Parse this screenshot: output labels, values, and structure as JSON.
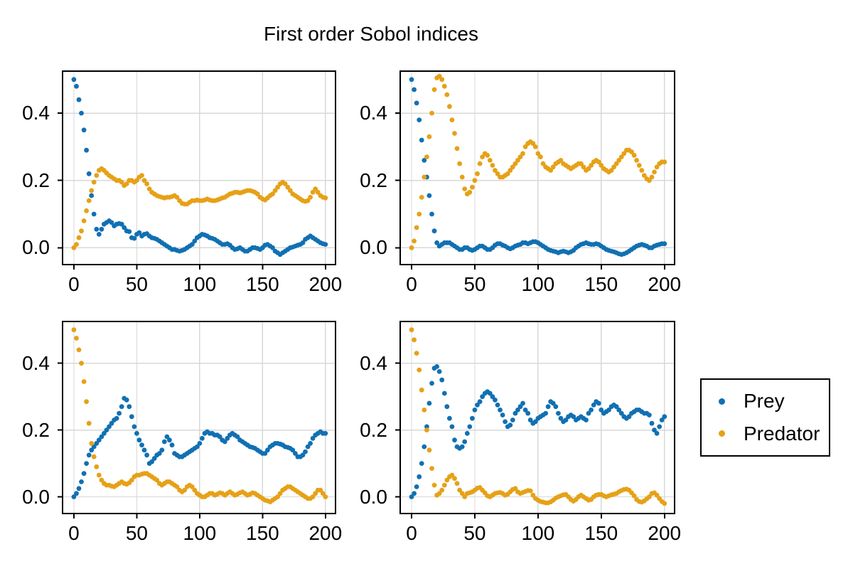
{
  "colors": {
    "prey": "#1170b2",
    "predator": "#e6a117",
    "grid": "#d8d8d8",
    "axis": "#000000",
    "text": "#000000",
    "background": "#ffffff"
  },
  "legend": {
    "position": "center-right",
    "items": [
      {
        "label": "Prey",
        "color_key": "prey"
      },
      {
        "label": "Predator",
        "color_key": "predator"
      }
    ]
  },
  "chart_data": {
    "type": "scatter",
    "title": "First order Sobol indices",
    "xlabel": "",
    "ylabel": "",
    "grid": true,
    "marker": "point",
    "xlim": [
      -9,
      208
    ],
    "ylim": [
      -0.05,
      0.525
    ],
    "x_ticks": [
      0,
      50,
      100,
      150,
      200
    ],
    "x_tick_labels": [
      "0",
      "50",
      "100",
      "150",
      "200"
    ],
    "y_ticks": [
      0.0,
      0.2,
      0.4
    ],
    "y_tick_labels": [
      "0.0",
      "0.2",
      "0.4"
    ],
    "x": [
      0,
      2,
      4,
      6,
      8,
      10,
      12,
      14,
      16,
      18,
      20,
      22,
      24,
      26,
      28,
      30,
      32,
      34,
      36,
      38,
      40,
      42,
      44,
      46,
      48,
      50,
      52,
      54,
      56,
      58,
      60,
      62,
      64,
      66,
      68,
      70,
      72,
      74,
      76,
      78,
      80,
      82,
      84,
      86,
      88,
      90,
      92,
      94,
      96,
      98,
      100,
      102,
      104,
      106,
      108,
      110,
      112,
      114,
      116,
      118,
      120,
      122,
      124,
      126,
      128,
      130,
      132,
      134,
      136,
      138,
      140,
      142,
      144,
      146,
      148,
      150,
      152,
      154,
      156,
      158,
      160,
      162,
      164,
      166,
      168,
      170,
      172,
      174,
      176,
      178,
      180,
      182,
      184,
      186,
      188,
      190,
      192,
      194,
      196,
      198,
      200
    ],
    "subplots": [
      {
        "position": "top-left",
        "series": [
          {
            "name": "Prey",
            "color_key": "prey",
            "values": [
              0.5,
              0.48,
              0.44,
              0.4,
              0.35,
              0.29,
              0.22,
              0.155,
              0.1,
              0.055,
              0.04,
              0.055,
              0.07,
              0.075,
              0.08,
              0.075,
              0.065,
              0.07,
              0.072,
              0.07,
              0.06,
              0.05,
              0.048,
              0.03,
              0.028,
              0.04,
              0.045,
              0.035,
              0.04,
              0.042,
              0.035,
              0.03,
              0.028,
              0.025,
              0.02,
              0.015,
              0.01,
              0.005,
              0,
              -0.005,
              -0.005,
              -0.008,
              -0.01,
              -0.008,
              -0.005,
              0,
              0.005,
              0.01,
              0.02,
              0.03,
              0.035,
              0.04,
              0.038,
              0.035,
              0.03,
              0.028,
              0.025,
              0.02,
              0.015,
              0.01,
              0.01,
              0.012,
              0.008,
              0,
              -0.005,
              -0.003,
              0,
              -0.005,
              -0.01,
              -0.01,
              -0.005,
              0,
              0,
              -0.002,
              -0.005,
              0,
              0.008,
              0.01,
              0.005,
              0,
              -0.01,
              -0.015,
              -0.02,
              -0.015,
              -0.01,
              -0.005,
              0,
              0.002,
              0.005,
              0.008,
              0.01,
              0.015,
              0.025,
              0.03,
              0.035,
              0.03,
              0.025,
              0.02,
              0.015,
              0.012,
              0.01
            ]
          },
          {
            "name": "Predator",
            "color_key": "predator",
            "values": [
              0,
              0.01,
              0.03,
              0.05,
              0.08,
              0.11,
              0.14,
              0.17,
              0.195,
              0.215,
              0.23,
              0.235,
              0.23,
              0.222,
              0.215,
              0.21,
              0.205,
              0.2,
              0.2,
              0.195,
              0.185,
              0.19,
              0.2,
              0.2,
              0.195,
              0.2,
              0.21,
              0.215,
              0.2,
              0.19,
              0.175,
              0.165,
              0.16,
              0.155,
              0.152,
              0.15,
              0.148,
              0.15,
              0.15,
              0.152,
              0.155,
              0.15,
              0.14,
              0.132,
              0.13,
              0.13,
              0.135,
              0.14,
              0.14,
              0.142,
              0.14,
              0.14,
              0.142,
              0.145,
              0.142,
              0.14,
              0.14,
              0.142,
              0.145,
              0.148,
              0.15,
              0.155,
              0.16,
              0.162,
              0.165,
              0.165,
              0.163,
              0.165,
              0.168,
              0.17,
              0.17,
              0.168,
              0.165,
              0.16,
              0.15,
              0.145,
              0.142,
              0.148,
              0.155,
              0.16,
              0.17,
              0.18,
              0.19,
              0.195,
              0.19,
              0.18,
              0.17,
              0.16,
              0.155,
              0.15,
              0.145,
              0.14,
              0.138,
              0.14,
              0.15,
              0.165,
              0.175,
              0.165,
              0.155,
              0.15,
              0.148
            ]
          }
        ]
      },
      {
        "position": "top-right",
        "series": [
          {
            "name": "Prey",
            "color_key": "prey",
            "values": [
              0.5,
              0.47,
              0.43,
              0.38,
              0.32,
              0.26,
              0.21,
              0.155,
              0.1,
              0.05,
              0.015,
              0.005,
              0.01,
              0.015,
              0.015,
              0.015,
              0.01,
              0.005,
              0,
              -0.005,
              -0.005,
              0,
              0,
              -0.005,
              -0.008,
              -0.005,
              0,
              0.005,
              0.005,
              0,
              -0.005,
              -0.005,
              0,
              0.008,
              0.012,
              0.012,
              0.008,
              0.005,
              0,
              -0.003,
              0,
              0.005,
              0.008,
              0.01,
              0.015,
              0.015,
              0.012,
              0.015,
              0.018,
              0.018,
              0.015,
              0.01,
              0.005,
              0,
              -0.005,
              -0.008,
              -0.01,
              -0.012,
              -0.015,
              -0.012,
              -0.01,
              -0.012,
              -0.015,
              -0.012,
              -0.008,
              0,
              0.005,
              0.01,
              0.012,
              0.015,
              0.012,
              0.01,
              0.01,
              0.012,
              0.01,
              0.005,
              0,
              -0.005,
              -0.008,
              -0.01,
              -0.012,
              -0.015,
              -0.018,
              -0.02,
              -0.018,
              -0.015,
              -0.01,
              -0.005,
              0,
              0.005,
              0.008,
              0.01,
              0.008,
              0.005,
              0,
              0,
              0.005,
              0.008,
              0.01,
              0.012,
              0.012
            ]
          },
          {
            "name": "Predator",
            "color_key": "predator",
            "values": [
              0,
              0.02,
              0.06,
              0.1,
              0.15,
              0.21,
              0.27,
              0.33,
              0.4,
              0.47,
              0.505,
              0.51,
              0.5,
              0.48,
              0.455,
              0.42,
              0.38,
              0.34,
              0.295,
              0.25,
              0.21,
              0.175,
              0.16,
              0.165,
              0.18,
              0.2,
              0.22,
              0.25,
              0.27,
              0.28,
              0.275,
              0.26,
              0.245,
              0.23,
              0.22,
              0.21,
              0.21,
              0.215,
              0.22,
              0.23,
              0.24,
              0.25,
              0.26,
              0.27,
              0.28,
              0.3,
              0.31,
              0.315,
              0.31,
              0.3,
              0.28,
              0.27,
              0.25,
              0.24,
              0.235,
              0.23,
              0.24,
              0.25,
              0.255,
              0.26,
              0.25,
              0.245,
              0.24,
              0.235,
              0.24,
              0.245,
              0.25,
              0.25,
              0.24,
              0.23,
              0.235,
              0.245,
              0.255,
              0.26,
              0.255,
              0.245,
              0.235,
              0.23,
              0.225,
              0.23,
              0.24,
              0.25,
              0.26,
              0.27,
              0.28,
              0.29,
              0.29,
              0.285,
              0.275,
              0.26,
              0.245,
              0.23,
              0.215,
              0.205,
              0.2,
              0.21,
              0.225,
              0.24,
              0.25,
              0.255,
              0.255
            ]
          }
        ]
      },
      {
        "position": "bottom-left",
        "series": [
          {
            "name": "Prey",
            "color_key": "prey",
            "values": [
              0,
              0.01,
              0.025,
              0.045,
              0.07,
              0.1,
              0.125,
              0.14,
              0.15,
              0.16,
              0.17,
              0.18,
              0.19,
              0.2,
              0.21,
              0.22,
              0.23,
              0.235,
              0.25,
              0.27,
              0.295,
              0.29,
              0.27,
              0.24,
              0.21,
              0.19,
              0.17,
              0.155,
              0.14,
              0.125,
              0.1,
              0.105,
              0.115,
              0.125,
              0.13,
              0.14,
              0.165,
              0.18,
              0.17,
              0.155,
              0.13,
              0.125,
              0.12,
              0.12,
              0.125,
              0.13,
              0.135,
              0.14,
              0.145,
              0.15,
              0.16,
              0.175,
              0.19,
              0.195,
              0.19,
              0.19,
              0.185,
              0.185,
              0.18,
              0.17,
              0.165,
              0.175,
              0.185,
              0.19,
              0.185,
              0.18,
              0.17,
              0.165,
              0.16,
              0.155,
              0.15,
              0.148,
              0.145,
              0.14,
              0.135,
              0.13,
              0.13,
              0.14,
              0.15,
              0.155,
              0.16,
              0.16,
              0.158,
              0.155,
              0.15,
              0.148,
              0.145,
              0.14,
              0.13,
              0.12,
              0.12,
              0.125,
              0.135,
              0.15,
              0.16,
              0.175,
              0.185,
              0.19,
              0.195,
              0.19,
              0.19
            ]
          },
          {
            "name": "Predator",
            "color_key": "predator",
            "values": [
              0.5,
              0.475,
              0.44,
              0.4,
              0.345,
              0.285,
              0.22,
              0.16,
              0.12,
              0.09,
              0.065,
              0.05,
              0.04,
              0.035,
              0.035,
              0.032,
              0.03,
              0.035,
              0.04,
              0.045,
              0.04,
              0.038,
              0.042,
              0.05,
              0.06,
              0.065,
              0.065,
              0.068,
              0.07,
              0.07,
              0.065,
              0.06,
              0.055,
              0.05,
              0.04,
              0.035,
              0.04,
              0.045,
              0.045,
              0.04,
              0.035,
              0.03,
              0.02,
              0.015,
              0.02,
              0.03,
              0.035,
              0.03,
              0.02,
              0.01,
              0.005,
              0,
              0,
              0.005,
              0.01,
              0.01,
              0.005,
              0.008,
              0.012,
              0.01,
              0.005,
              0.01,
              0.015,
              0.01,
              0.005,
              0.008,
              0.012,
              0.015,
              0.01,
              0.005,
              0.008,
              0.012,
              0.01,
              0.005,
              0,
              -0.005,
              -0.01,
              -0.012,
              -0.015,
              -0.01,
              -0.005,
              0,
              0.01,
              0.02,
              0.025,
              0.03,
              0.03,
              0.025,
              0.02,
              0.015,
              0.01,
              0.005,
              0,
              -0.005,
              -0.005,
              0,
              0.01,
              0.02,
              0.02,
              0.01,
              0
            ]
          }
        ]
      },
      {
        "position": "bottom-right",
        "series": [
          {
            "name": "Prey",
            "color_key": "prey",
            "values": [
              0,
              0.01,
              0.03,
              0.06,
              0.1,
              0.15,
              0.21,
              0.28,
              0.34,
              0.385,
              0.39,
              0.375,
              0.35,
              0.31,
              0.27,
              0.235,
              0.21,
              0.17,
              0.15,
              0.145,
              0.15,
              0.165,
              0.19,
              0.21,
              0.235,
              0.26,
              0.275,
              0.285,
              0.3,
              0.31,
              0.315,
              0.31,
              0.3,
              0.29,
              0.275,
              0.26,
              0.245,
              0.225,
              0.21,
              0.215,
              0.23,
              0.25,
              0.26,
              0.27,
              0.28,
              0.26,
              0.25,
              0.23,
              0.22,
              0.225,
              0.235,
              0.24,
              0.245,
              0.25,
              0.27,
              0.285,
              0.28,
              0.27,
              0.25,
              0.235,
              0.225,
              0.23,
              0.24,
              0.245,
              0.24,
              0.23,
              0.235,
              0.24,
              0.235,
              0.23,
              0.25,
              0.26,
              0.275,
              0.285,
              0.28,
              0.26,
              0.25,
              0.255,
              0.26,
              0.27,
              0.275,
              0.27,
              0.26,
              0.25,
              0.24,
              0.235,
              0.24,
              0.25,
              0.255,
              0.26,
              0.26,
              0.255,
              0.25,
              0.25,
              0.245,
              0.22,
              0.2,
              0.19,
              0.21,
              0.23,
              0.24
            ]
          },
          {
            "name": "Predator",
            "color_key": "predator",
            "values": [
              0.5,
              0.47,
              0.43,
              0.38,
              0.32,
              0.26,
              0.2,
              0.14,
              0.085,
              0.035,
              0.005,
              0.01,
              0.02,
              0.035,
              0.05,
              0.06,
              0.065,
              0.055,
              0.04,
              0.02,
              0.01,
              0,
              0.01,
              0.012,
              0.015,
              0.02,
              0.026,
              0.028,
              0.02,
              0.012,
              0.003,
              0,
              0.005,
              0.01,
              0.012,
              0.013,
              0.01,
              0.005,
              0.008,
              0.015,
              0.022,
              0.025,
              0.015,
              0.01,
              0.013,
              0.016,
              0.019,
              0.018,
              0.005,
              -0.005,
              -0.01,
              -0.014,
              -0.016,
              -0.018,
              -0.018,
              -0.015,
              -0.01,
              -0.004,
              0,
              0.003,
              0.006,
              0.007,
              0,
              -0.008,
              -0.013,
              -0.008,
              0,
              0.005,
              0,
              -0.005,
              -0.01,
              -0.008,
              0,
              0.005,
              0.007,
              0.007,
              0.003,
              0,
              0.003,
              0.006,
              0.008,
              0.01,
              0.015,
              0.019,
              0.022,
              0.023,
              0.02,
              0.012,
              0.003,
              -0.008,
              -0.014,
              -0.016,
              -0.012,
              -0.006,
              0,
              0.01,
              0.012,
              0.005,
              -0.005,
              -0.014,
              -0.02
            ]
          }
        ]
      }
    ]
  }
}
